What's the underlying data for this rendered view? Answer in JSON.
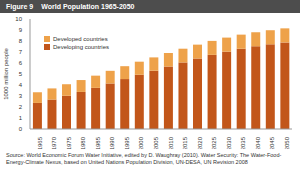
{
  "chart_data": {
    "type": "bar",
    "figure_label": "Figure 9",
    "title": "World Population 1965-2050",
    "y_label": "1000 million people",
    "source": "Source: World Economic Forum Water Initiative, edited by D. Waughray (2010). Water Security: The Water-Food-Energy-Climate Nexus, based on United Nations Population Division, UN-DESA, UN Revision 2008",
    "categories": [
      "1965",
      "1970",
      "1975",
      "1980",
      "1985",
      "1990",
      "1995",
      "2000",
      "2005",
      "2010",
      "2015",
      "2020",
      "2025",
      "2030",
      "2035",
      "2040",
      "2045",
      "2050"
    ],
    "series": [
      {
        "name": "Developing countries",
        "color": "#c2561a",
        "values": [
          2.37,
          2.68,
          3.02,
          3.37,
          3.74,
          4.14,
          4.54,
          4.93,
          5.3,
          5.68,
          6.05,
          6.41,
          6.74,
          7.03,
          7.3,
          7.52,
          7.7,
          7.87
        ]
      },
      {
        "name": "Developed countries",
        "color": "#eea24a",
        "values": [
          0.97,
          1.01,
          1.05,
          1.08,
          1.11,
          1.15,
          1.17,
          1.19,
          1.21,
          1.23,
          1.25,
          1.26,
          1.27,
          1.28,
          1.28,
          1.28,
          1.28,
          1.28
        ]
      }
    ],
    "stacked": true,
    "ylim": [
      0,
      10
    ],
    "yticks": [
      0,
      1,
      2,
      3,
      4,
      5,
      6,
      7,
      8,
      9,
      10
    ],
    "grid": false,
    "legend": "upper left"
  }
}
